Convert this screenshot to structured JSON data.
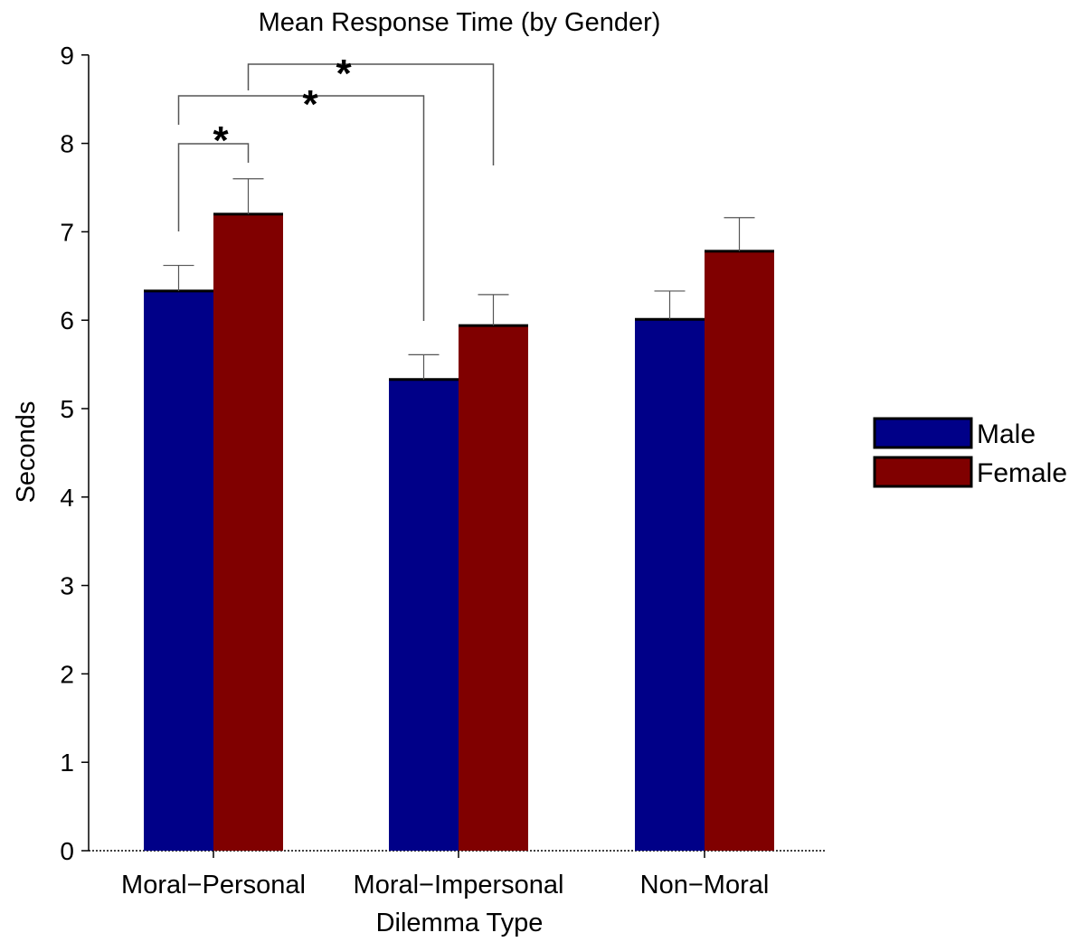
{
  "chart_data": {
    "type": "bar",
    "title": "Mean Response Time (by Gender)",
    "xlabel": "Dilemma Type",
    "ylabel": "Seconds",
    "ylim": [
      0,
      9
    ],
    "yticks": [
      "0",
      "1",
      "2",
      "3",
      "4",
      "5",
      "6",
      "7",
      "8",
      "9"
    ],
    "grid": false,
    "legend_position": "right",
    "categories": [
      "Moral−Personal",
      "Moral−Impersonal",
      "Non−Moral"
    ],
    "series": [
      {
        "name": "Male",
        "color": "#000088",
        "values": [
          6.33,
          5.33,
          6.01
        ],
        "errors": [
          0.29,
          0.28,
          0.32
        ]
      },
      {
        "name": "Female",
        "color": "#800000",
        "values": [
          7.2,
          5.94,
          6.78
        ],
        "errors": [
          0.4,
          0.35,
          0.38
        ]
      }
    ],
    "significance_brackets": [
      {
        "label": "*",
        "from": "Moral−Personal / Male",
        "to": "Moral−Personal / Female"
      },
      {
        "label": "*",
        "from": "Moral−Personal / Male",
        "to": "Moral−Impersonal / Male"
      },
      {
        "label": "*",
        "from": "Moral−Personal / Female",
        "to": "Moral−Impersonal / Female"
      }
    ]
  }
}
